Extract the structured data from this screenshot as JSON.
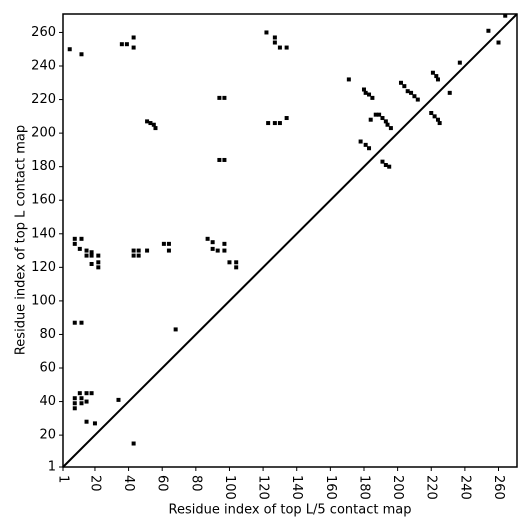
{
  "chart_data": {
    "type": "scatter",
    "xlabel": "Residue index of top L/5 contact map",
    "ylabel": "Residue index of top L contact map",
    "color": "#000000",
    "x": [
      5,
      12,
      36,
      39,
      43,
      43,
      122,
      127,
      127,
      130,
      134,
      51,
      53,
      55,
      56,
      123,
      127,
      130,
      134,
      94,
      97,
      94,
      97,
      8,
      12,
      8,
      11,
      15,
      18,
      15,
      18,
      22,
      22,
      18,
      22,
      43,
      46,
      43,
      46,
      51,
      61,
      64,
      64,
      87,
      90,
      90,
      93,
      97,
      97,
      100,
      104,
      104,
      68,
      8,
      12,
      11,
      15,
      18,
      8,
      12,
      15,
      8,
      12,
      8,
      15,
      20,
      34,
      43,
      171,
      180,
      181,
      183,
      185,
      184,
      187,
      189,
      191,
      193,
      194,
      196,
      178,
      181,
      183,
      191,
      193,
      195,
      202,
      204,
      206,
      208,
      210,
      212,
      221,
      223,
      224,
      220,
      222,
      224,
      225,
      231,
      237,
      254,
      260,
      264
    ],
    "values": [
      250,
      247,
      253,
      253,
      257,
      251,
      260,
      257,
      254,
      251,
      251,
      207,
      206,
      205,
      203,
      206,
      206,
      206,
      209,
      221,
      221,
      184,
      184,
      137,
      137,
      134,
      131,
      130,
      129,
      127,
      127,
      127,
      123,
      122,
      120,
      130,
      130,
      127,
      127,
      130,
      134,
      134,
      130,
      137,
      135,
      131,
      130,
      130,
      134,
      123,
      123,
      120,
      83,
      87,
      87,
      45,
      45,
      45,
      42,
      42,
      40,
      39,
      39,
      36,
      28,
      27,
      41,
      15,
      232,
      226,
      224,
      223,
      221,
      208,
      211,
      211,
      209,
      207,
      205,
      203,
      195,
      193,
      191,
      183,
      181,
      180,
      230,
      228,
      225,
      224,
      222,
      220,
      236,
      234,
      232,
      212,
      210,
      208,
      206,
      224,
      242,
      261,
      254,
      270
    ],
    "xlim": [
      1,
      271
    ],
    "ylim": [
      1,
      271
    ],
    "xticks": [
      1,
      20,
      40,
      60,
      80,
      100,
      120,
      140,
      160,
      180,
      200,
      220,
      240,
      260
    ],
    "yticks": [
      1,
      20,
      40,
      60,
      80,
      100,
      120,
      140,
      160,
      180,
      200,
      220,
      240,
      260
    ]
  }
}
